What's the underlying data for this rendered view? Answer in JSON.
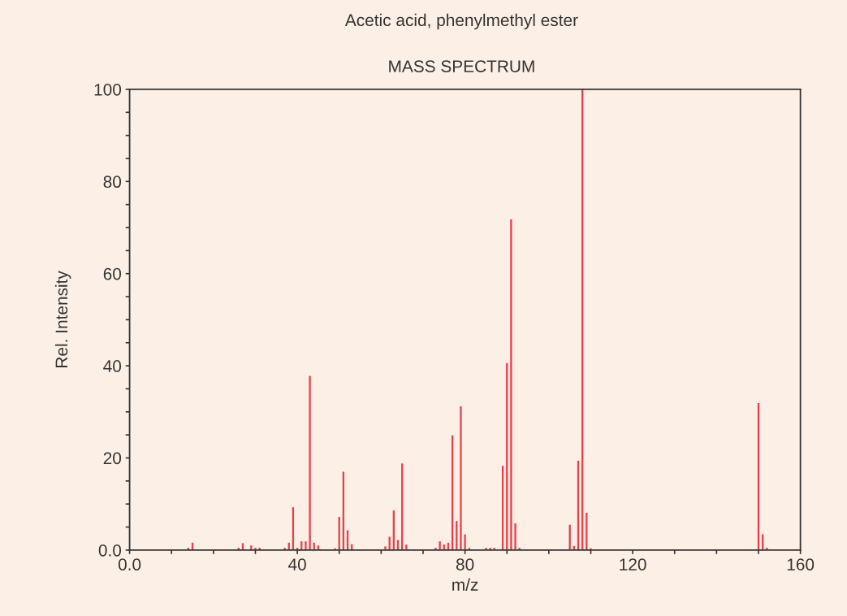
{
  "chart_data": {
    "type": "bar",
    "title": "Acetic acid, phenylmethyl ester",
    "subtitle": "MASS SPECTRUM",
    "xlabel": "m/z",
    "ylabel": "Rel. Intensity",
    "x": [
      14,
      15,
      26,
      27,
      29,
      30,
      31,
      37,
      38,
      39,
      40,
      41,
      42,
      43,
      44,
      45,
      49,
      50,
      51,
      52,
      53,
      61,
      62,
      63,
      64,
      65,
      66,
      73,
      74,
      75,
      76,
      77,
      78,
      79,
      80,
      81,
      85,
      86,
      87,
      89,
      90,
      91,
      92,
      93,
      105,
      106,
      107,
      108,
      109,
      110,
      150,
      151,
      152
    ],
    "values": [
      0.5,
      1.6,
      0.5,
      1.5,
      1,
      0.5,
      0.5,
      0.5,
      1.6,
      9.3,
      0.5,
      1.9,
      1.9,
      37.8,
      1.6,
      1,
      0.4,
      7.2,
      17,
      4.3,
      1.3,
      0.8,
      2.9,
      8.6,
      2.2,
      18.8,
      1.2,
      0.5,
      1.9,
      1.2,
      1.6,
      24.9,
      6.3,
      31.2,
      3.4,
      0.5,
      0.5,
      0.5,
      0.5,
      18.3,
      40.6,
      71.8,
      5.8,
      0.5,
      5.5,
      0.9,
      19.4,
      100,
      8.1,
      0.4,
      31.9,
      3.4,
      0.5
    ],
    "color": "#e8404a",
    "xlim": [
      0,
      160
    ],
    "xticks": [
      {
        "value": 0,
        "label": "0.0"
      },
      {
        "value": 10,
        "label": null
      },
      {
        "value": 20,
        "label": null
      },
      {
        "value": 30,
        "label": null
      },
      40,
      {
        "value": 50,
        "label": null
      },
      {
        "value": 60,
        "label": null
      },
      {
        "value": 70,
        "label": null
      },
      80,
      {
        "value": 90,
        "label": null
      },
      {
        "value": 100,
        "label": null
      },
      {
        "value": 110,
        "label": null
      },
      120,
      {
        "value": 130,
        "label": null
      },
      {
        "value": 140,
        "label": null
      },
      {
        "value": 150,
        "label": null
      },
      160
    ],
    "ylim": [
      0,
      100
    ],
    "yticks": [
      {
        "value": 0,
        "label": "0.0"
      },
      {
        "value": 5,
        "label": null
      },
      {
        "value": 10,
        "label": null
      },
      {
        "value": 15,
        "label": null
      },
      20,
      {
        "value": 25,
        "label": null
      },
      {
        "value": 30,
        "label": null
      },
      {
        "value": 35,
        "label": null
      },
      40,
      {
        "value": 45,
        "label": null
      },
      {
        "value": 50,
        "label": null
      },
      {
        "value": 55,
        "label": null
      },
      60,
      {
        "value": 65,
        "label": null
      },
      {
        "value": 70,
        "label": null
      },
      {
        "value": 75,
        "label": null
      },
      80,
      {
        "value": 85,
        "label": null
      },
      {
        "value": 90,
        "label": null
      },
      {
        "value": 95,
        "label": null
      },
      100
    ]
  }
}
